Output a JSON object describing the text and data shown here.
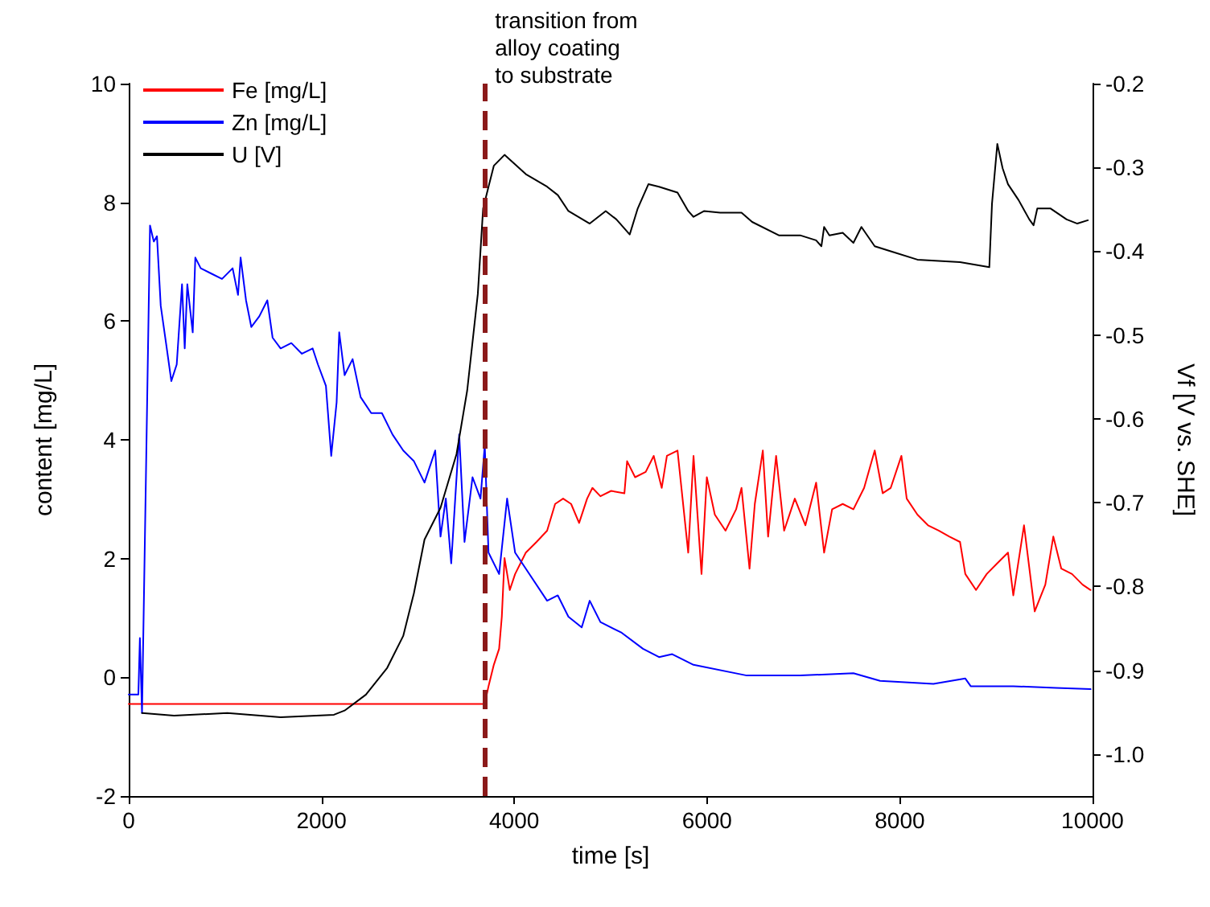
{
  "chart_data": {
    "type": "line",
    "xlabel": "time [s]",
    "ylabel": "content [mg/L]",
    "y2label": "Vf [V vs. SHE]",
    "xlim": [
      0,
      10000
    ],
    "xticks": [
      0,
      2000,
      4000,
      6000,
      8000,
      10000
    ],
    "ylim": [
      -2,
      10
    ],
    "yticks": [
      -2,
      0,
      2,
      4,
      6,
      8,
      10
    ],
    "y2lim": [
      -1.05,
      -0.2
    ],
    "y2ticks": [
      {
        "value": -1,
        "label": "-1.0"
      },
      -0.9,
      -0.8,
      -0.7,
      -0.6,
      -0.5,
      -0.4,
      -0.3,
      -0.2
    ],
    "grid": false,
    "legend": "top left",
    "marker": "none",
    "line_style": "solid",
    "ref_lines": [
      {
        "axis": "x",
        "value": 3700,
        "label": "transition from\nalloy coating\nto substrate",
        "color": "#8b1a1a",
        "line_style": "dashed"
      }
    ],
    "series": [
      {
        "name": "Fe [mg/L]",
        "color": "#ff0000",
        "x": [
          0,
          3694,
          3733,
          3788,
          3843,
          3871,
          3899,
          3954,
          4009,
          4120,
          4231,
          4341,
          4424,
          4507,
          4590,
          4673,
          4756,
          4811,
          4894,
          5005,
          5143,
          5171,
          5254,
          5364,
          5447,
          5530,
          5584,
          5694,
          5805,
          5860,
          5943,
          5998,
          6081,
          6192,
          6302,
          6358,
          6441,
          6496,
          6579,
          6634,
          6717,
          6800,
          6911,
          7021,
          7132,
          7215,
          7298,
          7408,
          7519,
          7630,
          7740,
          7823,
          7906,
          8017,
          8072,
          8183,
          8293,
          8404,
          8515,
          8625,
          8680,
          8791,
          8902,
          9012,
          9123,
          9178,
          9289,
          9400,
          9510,
          9593,
          9676,
          9787,
          9897,
          9980
        ],
        "values": [
          -0.45,
          -0.45,
          -0.15,
          0.21,
          0.48,
          1.02,
          2.01,
          1.47,
          1.74,
          2.1,
          2.28,
          2.47,
          2.92,
          3.01,
          2.92,
          2.6,
          3.01,
          3.19,
          3.05,
          3.14,
          3.1,
          3.64,
          3.37,
          3.46,
          3.73,
          3.19,
          3.73,
          3.82,
          2.1,
          3.73,
          1.74,
          3.37,
          2.74,
          2.47,
          2.83,
          3.19,
          1.83,
          2.92,
          3.82,
          2.37,
          3.73,
          2.47,
          3.01,
          2.56,
          3.28,
          2.1,
          2.83,
          2.92,
          2.83,
          3.19,
          3.82,
          3.1,
          3.19,
          3.73,
          3.01,
          2.74,
          2.56,
          2.47,
          2.37,
          2.28,
          1.74,
          1.47,
          1.74,
          1.92,
          2.1,
          1.38,
          2.56,
          1.11,
          1.56,
          2.37,
          1.83,
          1.74,
          1.56,
          1.47
        ]
      },
      {
        "name": "Zn [mg/L]",
        "color": "#0000ff",
        "x": [
          0,
          100,
          116,
          138,
          182,
          221,
          260,
          293,
          332,
          387,
          442,
          498,
          553,
          581,
          608,
          664,
          691,
          747,
          857,
          968,
          1078,
          1134,
          1161,
          1217,
          1272,
          1355,
          1438,
          1493,
          1576,
          1687,
          1797,
          1908,
          1963,
          2046,
          2101,
          2157,
          2184,
          2240,
          2323,
          2406,
          2516,
          2627,
          2737,
          2848,
          2959,
          3069,
          3180,
          3235,
          3290,
          3346,
          3429,
          3484,
          3567,
          3650,
          3694,
          3733,
          3843,
          3926,
          4009,
          4120,
          4341,
          4452,
          4562,
          4700,
          4783,
          4894,
          5115,
          5336,
          5502,
          5639,
          5860,
          6413,
          6966,
          7519,
          7796,
          8349,
          8680,
          8736,
          9178,
          9620,
          9980
        ],
        "values": [
          -0.29,
          -0.29,
          0.66,
          -0.6,
          3.73,
          7.61,
          7.34,
          7.43,
          6.26,
          5.63,
          4.99,
          5.27,
          6.62,
          5.54,
          6.62,
          5.81,
          7.07,
          6.89,
          6.8,
          6.71,
          6.89,
          6.44,
          7.07,
          6.35,
          5.9,
          6.08,
          6.35,
          5.72,
          5.54,
          5.63,
          5.45,
          5.54,
          5.27,
          4.91,
          3.73,
          4.63,
          5.81,
          5.09,
          5.36,
          4.72,
          4.45,
          4.45,
          4.09,
          3.82,
          3.64,
          3.28,
          3.82,
          2.37,
          3.01,
          1.92,
          4.09,
          2.28,
          3.37,
          3.01,
          3.91,
          2.1,
          1.74,
          3.01,
          2.1,
          1.83,
          1.29,
          1.38,
          1.02,
          0.84,
          1.29,
          0.93,
          0.75,
          0.48,
          0.34,
          0.39,
          0.21,
          0.03,
          0.03,
          0.07,
          -0.06,
          -0.11,
          -0.02,
          -0.15,
          -0.15,
          -0.18,
          -0.2
        ]
      },
      {
        "name": "U [V]",
        "color": "#000000",
        "axis": "y2",
        "x": [
          138,
          470,
          1023,
          1576,
          2129,
          2240,
          2461,
          2682,
          2848,
          2959,
          3069,
          3235,
          3401,
          3512,
          3622,
          3677,
          3733,
          3788,
          3899,
          4120,
          4341,
          4452,
          4562,
          4783,
          4949,
          5060,
          5198,
          5281,
          5392,
          5502,
          5694,
          5805,
          5860,
          5971,
          6137,
          6358,
          6468,
          6745,
          6966,
          7132,
          7187,
          7215,
          7270,
          7408,
          7519,
          7602,
          7740,
          7906,
          8183,
          8625,
          8929,
          8957,
          9012,
          9067,
          9123,
          9233,
          9344,
          9388,
          9427,
          9565,
          9731,
          9842,
          9952
        ],
        "values": [
          -0.951,
          -0.954,
          -0.951,
          -0.956,
          -0.953,
          -0.948,
          -0.929,
          -0.897,
          -0.859,
          -0.808,
          -0.744,
          -0.706,
          -0.642,
          -0.566,
          -0.451,
          -0.349,
          -0.323,
          -0.298,
          -0.285,
          -0.308,
          -0.323,
          -0.333,
          -0.352,
          -0.367,
          -0.352,
          -0.362,
          -0.38,
          -0.349,
          -0.32,
          -0.323,
          -0.33,
          -0.352,
          -0.359,
          -0.352,
          -0.354,
          -0.354,
          -0.365,
          -0.381,
          -0.381,
          -0.387,
          -0.394,
          -0.371,
          -0.381,
          -0.378,
          -0.39,
          -0.371,
          -0.394,
          -0.4,
          -0.41,
          -0.413,
          -0.419,
          -0.343,
          -0.272,
          -0.301,
          -0.32,
          -0.339,
          -0.362,
          -0.369,
          -0.349,
          -0.349,
          -0.362,
          -0.367,
          -0.363
        ]
      }
    ]
  }
}
